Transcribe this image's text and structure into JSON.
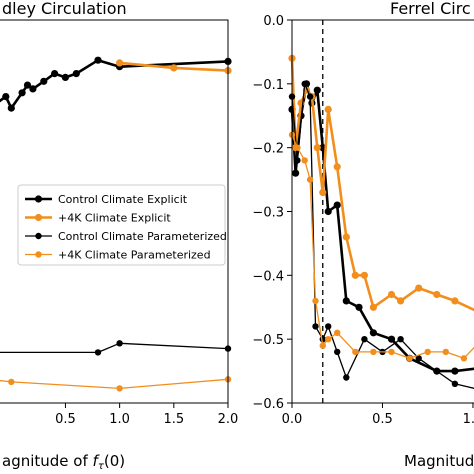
{
  "colors": {
    "control": "#000000",
    "warm": "#f28e1c"
  },
  "chart_data": [
    {
      "type": "line",
      "title": "Hadley Circulation",
      "title_visible": "dley Circulation",
      "xlabel_visible": "agnitude of fτ(0)",
      "x_ticks": [
        "0.5",
        "1.0",
        "1.5",
        "2.0"
      ],
      "xlim": [
        -0.15,
        2.0
      ],
      "ylim": [
        0,
        10
      ],
      "legend_placement": "center-right",
      "series": [
        {
          "name": "Control Climate Explicit",
          "style": "thick",
          "color": "control",
          "x": [
            -0.15,
            -0.05,
            0.0,
            0.1,
            0.15,
            0.2,
            0.3,
            0.4,
            0.5,
            0.6,
            0.8,
            1.0,
            2.0
          ],
          "y": [
            7.8,
            8.0,
            7.7,
            8.1,
            8.3,
            8.2,
            8.4,
            8.6,
            8.5,
            8.6,
            8.95,
            8.78,
            8.92
          ]
        },
        {
          "name": "+4K Climate Explicit",
          "style": "thick",
          "color": "warm",
          "x": [
            1.0,
            1.5,
            2.0
          ],
          "y": [
            8.88,
            8.75,
            8.68
          ]
        },
        {
          "name": "Control Climate Parameterized",
          "style": "thin",
          "color": "control",
          "x": [
            -0.15,
            0.8,
            1.0,
            2.0
          ],
          "y": [
            1.32,
            1.32,
            1.56,
            1.42
          ]
        },
        {
          "name": "+4K Climate Parameterized",
          "style": "thin",
          "color": "warm",
          "x": [
            -0.15,
            0.0,
            1.0,
            2.0
          ],
          "y": [
            0.6,
            0.55,
            0.38,
            0.62
          ]
        }
      ]
    },
    {
      "type": "line",
      "title": "Ferrel Circulation",
      "title_visible": "Ferrel Circ",
      "xlabel_visible": "Magnitude",
      "x_ticks": [
        "0.0",
        "0.5",
        "1.0"
      ],
      "y_ticks": [
        "0.0",
        "−0.1",
        "−0.2",
        "−0.3",
        "−0.4",
        "−0.5",
        "−0.6"
      ],
      "xlim": [
        0.0,
        1.05
      ],
      "ylim": [
        -0.6,
        0.0
      ],
      "vline_x": 0.17,
      "series": [
        {
          "name": "Control Climate Explicit",
          "style": "thick",
          "color": "control",
          "x": [
            0.0,
            0.02,
            0.05,
            0.08,
            0.11,
            0.14,
            0.17,
            0.2,
            0.25,
            0.3,
            0.37,
            0.45,
            0.55,
            0.65,
            0.8,
            0.9,
            1.05
          ],
          "y": [
            -0.14,
            -0.24,
            -0.15,
            -0.1,
            -0.13,
            -0.11,
            -0.2,
            -0.3,
            -0.29,
            -0.44,
            -0.45,
            -0.49,
            -0.5,
            -0.53,
            -0.55,
            -0.55,
            -0.545
          ]
        },
        {
          "name": "+4K Climate Explicit",
          "style": "thick",
          "color": "warm",
          "x": [
            0.0,
            0.02,
            0.05,
            0.08,
            0.11,
            0.14,
            0.17,
            0.2,
            0.25,
            0.3,
            0.35,
            0.4,
            0.45,
            0.55,
            0.6,
            0.7,
            0.8,
            0.9,
            1.05
          ],
          "y": [
            -0.06,
            -0.2,
            -0.13,
            -0.11,
            -0.12,
            -0.2,
            -0.27,
            -0.14,
            -0.23,
            -0.34,
            -0.4,
            -0.4,
            -0.45,
            -0.43,
            -0.44,
            -0.42,
            -0.43,
            -0.44,
            -0.46
          ]
        },
        {
          "name": "Control Climate Parameterized",
          "style": "thin",
          "color": "control",
          "x": [
            0.0,
            0.03,
            0.07,
            0.1,
            0.13,
            0.17,
            0.2,
            0.25,
            0.3,
            0.4,
            0.5,
            0.6,
            0.7,
            0.8,
            0.9,
            1.05
          ],
          "y": [
            -0.12,
            -0.22,
            -0.1,
            -0.12,
            -0.48,
            -0.5,
            -0.48,
            -0.52,
            -0.56,
            -0.5,
            -0.52,
            -0.5,
            -0.53,
            -0.55,
            -0.57,
            -0.58
          ]
        },
        {
          "name": "+4K Climate Parameterized",
          "style": "thin",
          "color": "warm",
          "x": [
            0.0,
            0.03,
            0.07,
            0.1,
            0.13,
            0.17,
            0.2,
            0.25,
            0.35,
            0.45,
            0.55,
            0.65,
            0.75,
            0.85,
            0.95,
            1.05
          ],
          "y": [
            -0.18,
            -0.2,
            -0.22,
            -0.25,
            -0.44,
            -0.51,
            -0.5,
            -0.49,
            -0.52,
            -0.52,
            -0.52,
            -0.53,
            -0.52,
            -0.52,
            -0.53,
            -0.5
          ]
        }
      ]
    }
  ],
  "legend": {
    "entries": [
      {
        "label": "Control Climate Explicit",
        "color": "control",
        "style": "thick"
      },
      {
        "label": "+4K Climate Explicit",
        "color": "warm",
        "style": "thick"
      },
      {
        "label": "Control Climate Parameterized",
        "color": "control",
        "style": "thin"
      },
      {
        "label": "+4K Climate Parameterized",
        "color": "warm",
        "style": "thin"
      }
    ]
  }
}
